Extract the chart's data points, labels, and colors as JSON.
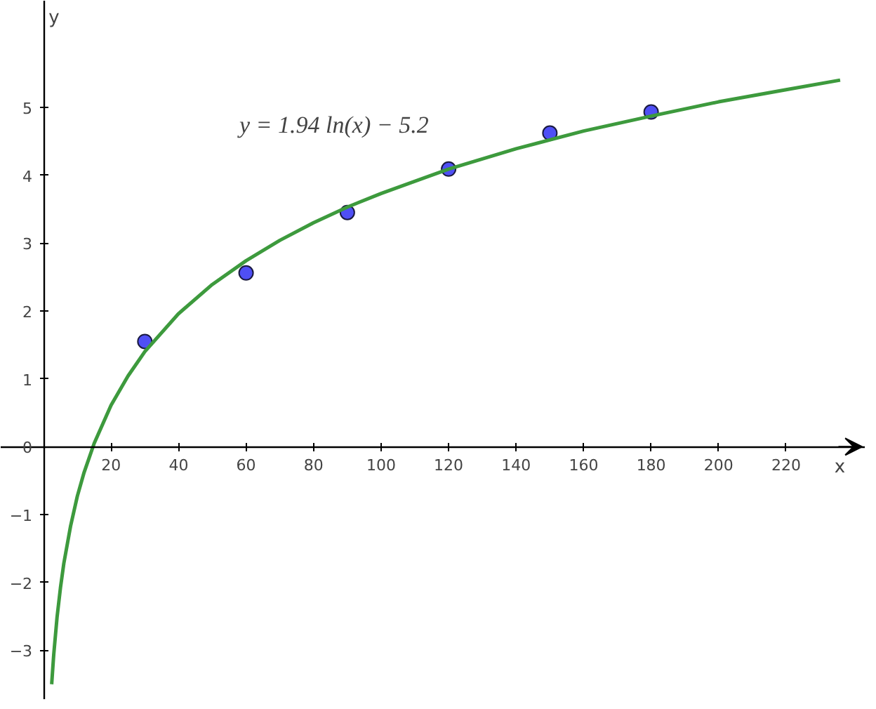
{
  "chart_data": {
    "type": "scatter",
    "xlabel": "x",
    "ylabel": "y",
    "annotations": [
      "y = 1.94 ln(x) − 5.2"
    ],
    "xlim": [
      -12.7,
      243.5
    ],
    "ylim": [
      -3.73,
      6.57
    ],
    "xticks": [
      20,
      40,
      60,
      80,
      100,
      120,
      140,
      160,
      180,
      200,
      220
    ],
    "yticks": [
      {
        "value": -3,
        "label": "−3"
      },
      {
        "value": -2,
        "label": "−2"
      },
      {
        "value": -1,
        "label": "−1"
      },
      0,
      1,
      2,
      3,
      4,
      5
    ],
    "grid": false,
    "marker": "circle",
    "series": [
      {
        "color": "#4f4ff5",
        "x": [
          30,
          60,
          90,
          120,
          150,
          180
        ],
        "values": [
          1.55,
          2.56,
          3.45,
          4.09,
          4.62,
          4.93
        ]
      },
      {
        "type": "line",
        "color": "#3d9a3d",
        "line_style": "solid",
        "marker": "none",
        "x": [
          2.4,
          3,
          4,
          5,
          6,
          8,
          10,
          12,
          15,
          20,
          25,
          30,
          40,
          50,
          60,
          70,
          80,
          90,
          100,
          120,
          140,
          160,
          180,
          200,
          220,
          236
        ],
        "values": [
          -3.5,
          -3.07,
          -2.51,
          -2.08,
          -1.72,
          -1.17,
          -0.73,
          -0.38,
          0.05,
          0.61,
          1.04,
          1.4,
          1.96,
          2.39,
          2.74,
          3.04,
          3.3,
          3.53,
          3.73,
          4.09,
          4.39,
          4.65,
          4.87,
          5.08,
          5.26,
          5.4
        ]
      }
    ]
  }
}
